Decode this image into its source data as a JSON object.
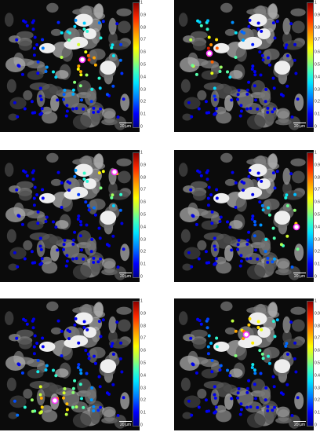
{
  "scale_label": "20 µm",
  "colorbar_ticks": [
    "1",
    "0.9",
    "0.8",
    "0.7",
    "0.6",
    "0.5",
    "0.4",
    "0.3",
    "0.2",
    "0.1",
    "0"
  ],
  "colormap": [
    "#00008b",
    "#0000ff",
    "#0080ff",
    "#00e5ff",
    "#40ffbf",
    "#b0ff50",
    "#ffff00",
    "#ff9900",
    "#ff2a00",
    "#8b0000"
  ],
  "seed_marker_color": "#ff33ff",
  "panels": [
    {
      "id": "top-left",
      "seed_value": 1.0,
      "hot_cluster": "center"
    },
    {
      "id": "top-right",
      "seed_value": 1.0,
      "hot_cluster": "upper-left"
    },
    {
      "id": "middle-left",
      "seed_value": 1.0,
      "hot_cluster": "upper-right"
    },
    {
      "id": "middle-right",
      "seed_value": 1.0,
      "hot_cluster": "right"
    },
    {
      "id": "bottom-left",
      "seed_value": 1.0,
      "hot_cluster": "lower-center"
    },
    {
      "id": "bottom-right",
      "seed_value": 1.0,
      "hot_cluster": "upper-center"
    }
  ]
}
